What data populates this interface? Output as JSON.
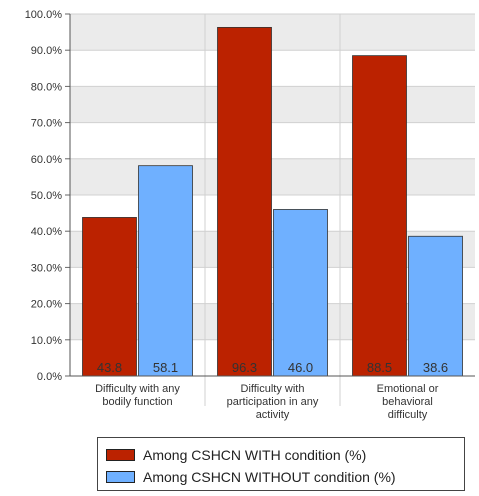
{
  "chart_data": {
    "type": "bar",
    "categories": [
      [
        "Difficulty with any",
        "bodily function"
      ],
      [
        "Difficulty with",
        "participation in any",
        "activity"
      ],
      [
        "Emotional or",
        "behavioral",
        "difficulty"
      ]
    ],
    "series": [
      {
        "name": "Among CSHCN WITH condition (%)",
        "values": [
          43.8,
          96.3,
          88.5
        ],
        "labels": [
          "43.8",
          "96.3",
          "88.5"
        ],
        "color": "#bb2200"
      },
      {
        "name": "Among CSHCN WITHOUT condition (%)",
        "values": [
          58.1,
          46.0,
          38.6
        ],
        "labels": [
          "58.1",
          "46.0",
          "38.6"
        ],
        "color": "#6fb0ff"
      }
    ],
    "ylim": [
      0,
      100
    ],
    "yticks": [
      "0.0%",
      "10.0%",
      "20.0%",
      "30.0%",
      "40.0%",
      "50.0%",
      "60.0%",
      "70.0%",
      "80.0%",
      "90.0%",
      "100.0%"
    ],
    "grid": true,
    "legend_position": "bottom"
  }
}
